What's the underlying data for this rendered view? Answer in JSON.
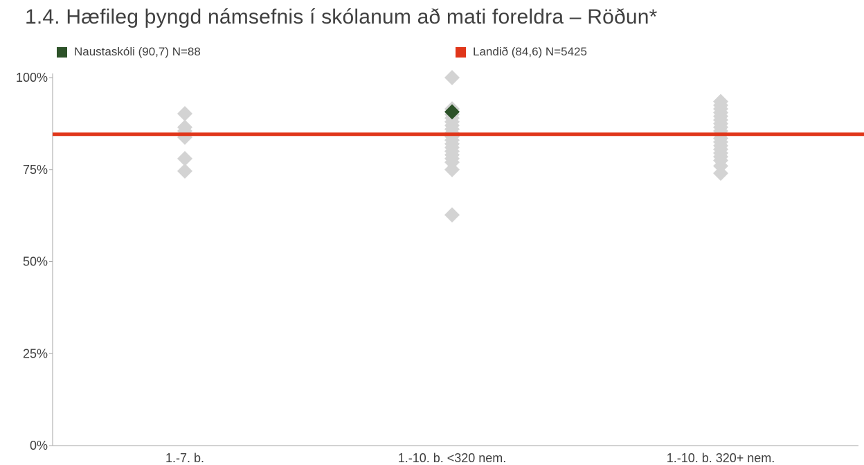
{
  "title": "1.4. Hæfileg þyngd námsefnis í skólanum að mati foreldra – Röðun*",
  "legend": [
    {
      "label": "Naustaskóli (90,7) N=88",
      "color": "#2d5229"
    },
    {
      "label": "Landið (84,6) N=5425",
      "color": "#e0361a"
    }
  ],
  "chart_data": {
    "type": "scatter",
    "categories": [
      "1.-7. b.",
      "1.-10. b. <320 nem.",
      "1.-10. b. 320+ nem."
    ],
    "ylim": [
      0,
      100
    ],
    "yticks": [
      0,
      25,
      50,
      75,
      100
    ],
    "ytick_labels": [
      "0%",
      "25%",
      "50%",
      "75%",
      "100%"
    ],
    "grid": false,
    "legend_position": "top",
    "series": [
      {
        "name": "",
        "color": "#d3d3d3",
        "marker": "diamond",
        "points": [
          {
            "category": "1.-7. b.",
            "y": 90.2
          },
          {
            "category": "1.-7. b.",
            "y": 86.5
          },
          {
            "category": "1.-7. b.",
            "y": 85.5
          },
          {
            "category": "1.-7. b.",
            "y": 83.8
          },
          {
            "category": "1.-7. b.",
            "y": 78.0
          },
          {
            "category": "1.-7. b.",
            "y": 74.6
          },
          {
            "category": "1.-10. b. <320 nem.",
            "y": 100.0
          },
          {
            "category": "1.-10. b. <320 nem.",
            "y": 91.5
          },
          {
            "category": "1.-10. b. <320 nem.",
            "y": 90.0
          },
          {
            "category": "1.-10. b. <320 nem.",
            "y": 89.0
          },
          {
            "category": "1.-10. b. <320 nem.",
            "y": 88.0
          },
          {
            "category": "1.-10. b. <320 nem.",
            "y": 87.0
          },
          {
            "category": "1.-10. b. <320 nem.",
            "y": 86.0
          },
          {
            "category": "1.-10. b. <320 nem.",
            "y": 85.0
          },
          {
            "category": "1.-10. b. <320 nem.",
            "y": 84.0
          },
          {
            "category": "1.-10. b. <320 nem.",
            "y": 83.0
          },
          {
            "category": "1.-10. b. <320 nem.",
            "y": 82.0
          },
          {
            "category": "1.-10. b. <320 nem.",
            "y": 81.0
          },
          {
            "category": "1.-10. b. <320 nem.",
            "y": 80.0
          },
          {
            "category": "1.-10. b. <320 nem.",
            "y": 79.0
          },
          {
            "category": "1.-10. b. <320 nem.",
            "y": 78.0
          },
          {
            "category": "1.-10. b. <320 nem.",
            "y": 77.0
          },
          {
            "category": "1.-10. b. <320 nem.",
            "y": 75.0
          },
          {
            "category": "1.-10. b. <320 nem.",
            "y": 62.7
          },
          {
            "category": "1.-10. b. 320+ nem.",
            "y": 93.5
          },
          {
            "category": "1.-10. b. 320+ nem.",
            "y": 92.5
          },
          {
            "category": "1.-10. b. 320+ nem.",
            "y": 91.5
          },
          {
            "category": "1.-10. b. 320+ nem.",
            "y": 90.5
          },
          {
            "category": "1.-10. b. 320+ nem.",
            "y": 89.5
          },
          {
            "category": "1.-10. b. 320+ nem.",
            "y": 88.5
          },
          {
            "category": "1.-10. b. 320+ nem.",
            "y": 87.5
          },
          {
            "category": "1.-10. b. 320+ nem.",
            "y": 86.5
          },
          {
            "category": "1.-10. b. 320+ nem.",
            "y": 85.5
          },
          {
            "category": "1.-10. b. 320+ nem.",
            "y": 84.5
          },
          {
            "category": "1.-10. b. 320+ nem.",
            "y": 83.5
          },
          {
            "category": "1.-10. b. 320+ nem.",
            "y": 82.5
          },
          {
            "category": "1.-10. b. 320+ nem.",
            "y": 81.5
          },
          {
            "category": "1.-10. b. 320+ nem.",
            "y": 80.5
          },
          {
            "category": "1.-10. b. 320+ nem.",
            "y": 79.5
          },
          {
            "category": "1.-10. b. 320+ nem.",
            "y": 78.5
          },
          {
            "category": "1.-10. b. 320+ nem.",
            "y": 77.5
          },
          {
            "category": "1.-10. b. 320+ nem.",
            "y": 76.0
          },
          {
            "category": "1.-10. b. 320+ nem.",
            "y": 74.0
          }
        ]
      },
      {
        "name": "Naustaskóli (90,7) N=88",
        "color": "#2d5229",
        "marker": "diamond",
        "points": [
          {
            "category": "1.-10. b. <320 nem.",
            "y": 90.7
          }
        ]
      }
    ],
    "reference_lines": [
      {
        "name": "Landið (84,6) N=5425",
        "y": 84.6,
        "color": "#e0361a"
      }
    ]
  }
}
